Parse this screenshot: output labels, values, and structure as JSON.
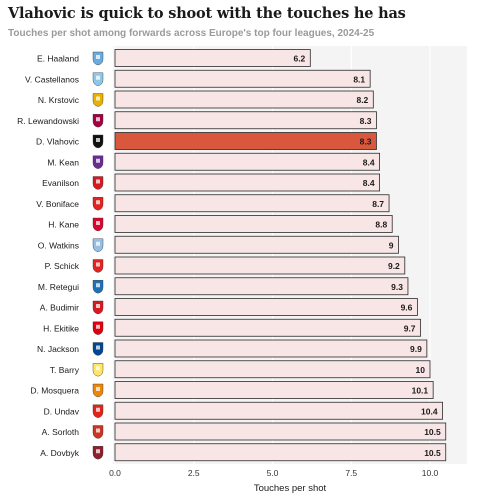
{
  "title": "Vlahovic is quick to shoot with the touches he has",
  "subtitle": "Touches per shot among forwards across Europe's top four leagues, 2024-25",
  "chart_data": {
    "type": "bar",
    "orientation": "horizontal",
    "xlabel": "Touches per shot",
    "ylabel": "",
    "xlim": [
      0,
      11
    ],
    "xticks": [
      "0.0",
      "2.5",
      "5.0",
      "7.5",
      "10.0"
    ],
    "grid": true,
    "highlight": "D. Vlahovic",
    "colors": {
      "bar": "#f8e6e6",
      "bar_stroke": "#2a2a2a",
      "highlight": "#d9573d"
    },
    "bars": [
      {
        "player": "E. Haaland",
        "value": 6.2,
        "label": "6.2",
        "icon": "man-city-crest-icon",
        "icon_color": "#6cabdd"
      },
      {
        "player": "V. Castellanos",
        "value": 8.1,
        "label": "8.1",
        "icon": "lazio-eagle-icon",
        "icon_color": "#8fc7e8"
      },
      {
        "player": "N. Krstovic",
        "value": 8.2,
        "label": "8.2",
        "icon": "lecce-crest-icon",
        "icon_color": "#e8b200"
      },
      {
        "player": "R. Lewandowski",
        "value": 8.3,
        "label": "8.3",
        "icon": "barcelona-crest-icon",
        "icon_color": "#a50044"
      },
      {
        "player": "D. Vlahovic",
        "value": 8.3,
        "label": "8.3",
        "icon": "juventus-crest-icon",
        "icon_color": "#111111"
      },
      {
        "player": "M. Kean",
        "value": 8.4,
        "label": "8.4",
        "icon": "fiorentina-lily-icon",
        "icon_color": "#6a2c91"
      },
      {
        "player": "Evanilson",
        "value": 8.4,
        "label": "8.4",
        "icon": "bournemouth-crest-icon",
        "icon_color": "#d71920"
      },
      {
        "player": "V. Boniface",
        "value": 8.7,
        "label": "8.7",
        "icon": "leverkusen-crest-icon",
        "icon_color": "#e32221"
      },
      {
        "player": "H. Kane",
        "value": 8.8,
        "label": "8.8",
        "icon": "bayern-crest-icon",
        "icon_color": "#dc052d"
      },
      {
        "player": "O. Watkins",
        "value": 9,
        "label": "9",
        "icon": "aston-villa-crest-icon",
        "icon_color": "#95bfe5"
      },
      {
        "player": "P. Schick",
        "value": 9.2,
        "label": "9.2",
        "icon": "leverkusen-crest-icon",
        "icon_color": "#e32221"
      },
      {
        "player": "M. Retegui",
        "value": 9.3,
        "label": "9.3",
        "icon": "atalanta-crest-icon",
        "icon_color": "#1e71b8"
      },
      {
        "player": "A. Budimir",
        "value": 9.6,
        "label": "9.6",
        "icon": "osasuna-crest-icon",
        "icon_color": "#d91a21"
      },
      {
        "player": "H. Ekitike",
        "value": 9.7,
        "label": "9.7",
        "icon": "frankfurt-eagle-icon",
        "icon_color": "#e1000f"
      },
      {
        "player": "N. Jackson",
        "value": 9.9,
        "label": "9.9",
        "icon": "chelsea-crest-icon",
        "icon_color": "#034694"
      },
      {
        "player": "T. Barry",
        "value": 10,
        "label": "10",
        "icon": "villarreal-crest-icon",
        "icon_color": "#ffe667"
      },
      {
        "player": "D. Mosquera",
        "value": 10.1,
        "label": "10.1",
        "icon": "valencia-bat-icon",
        "icon_color": "#ee8707"
      },
      {
        "player": "D. Undav",
        "value": 10.4,
        "label": "10.4",
        "icon": "stuttgart-crest-icon",
        "icon_color": "#e32219"
      },
      {
        "player": "A. Sorloth",
        "value": 10.5,
        "label": "10.5",
        "icon": "atletico-crest-icon",
        "icon_color": "#cb3524"
      },
      {
        "player": "A. Dovbyk",
        "value": 10.5,
        "label": "10.5",
        "icon": "roma-wolf-icon",
        "icon_color": "#8e1f2f"
      }
    ]
  }
}
